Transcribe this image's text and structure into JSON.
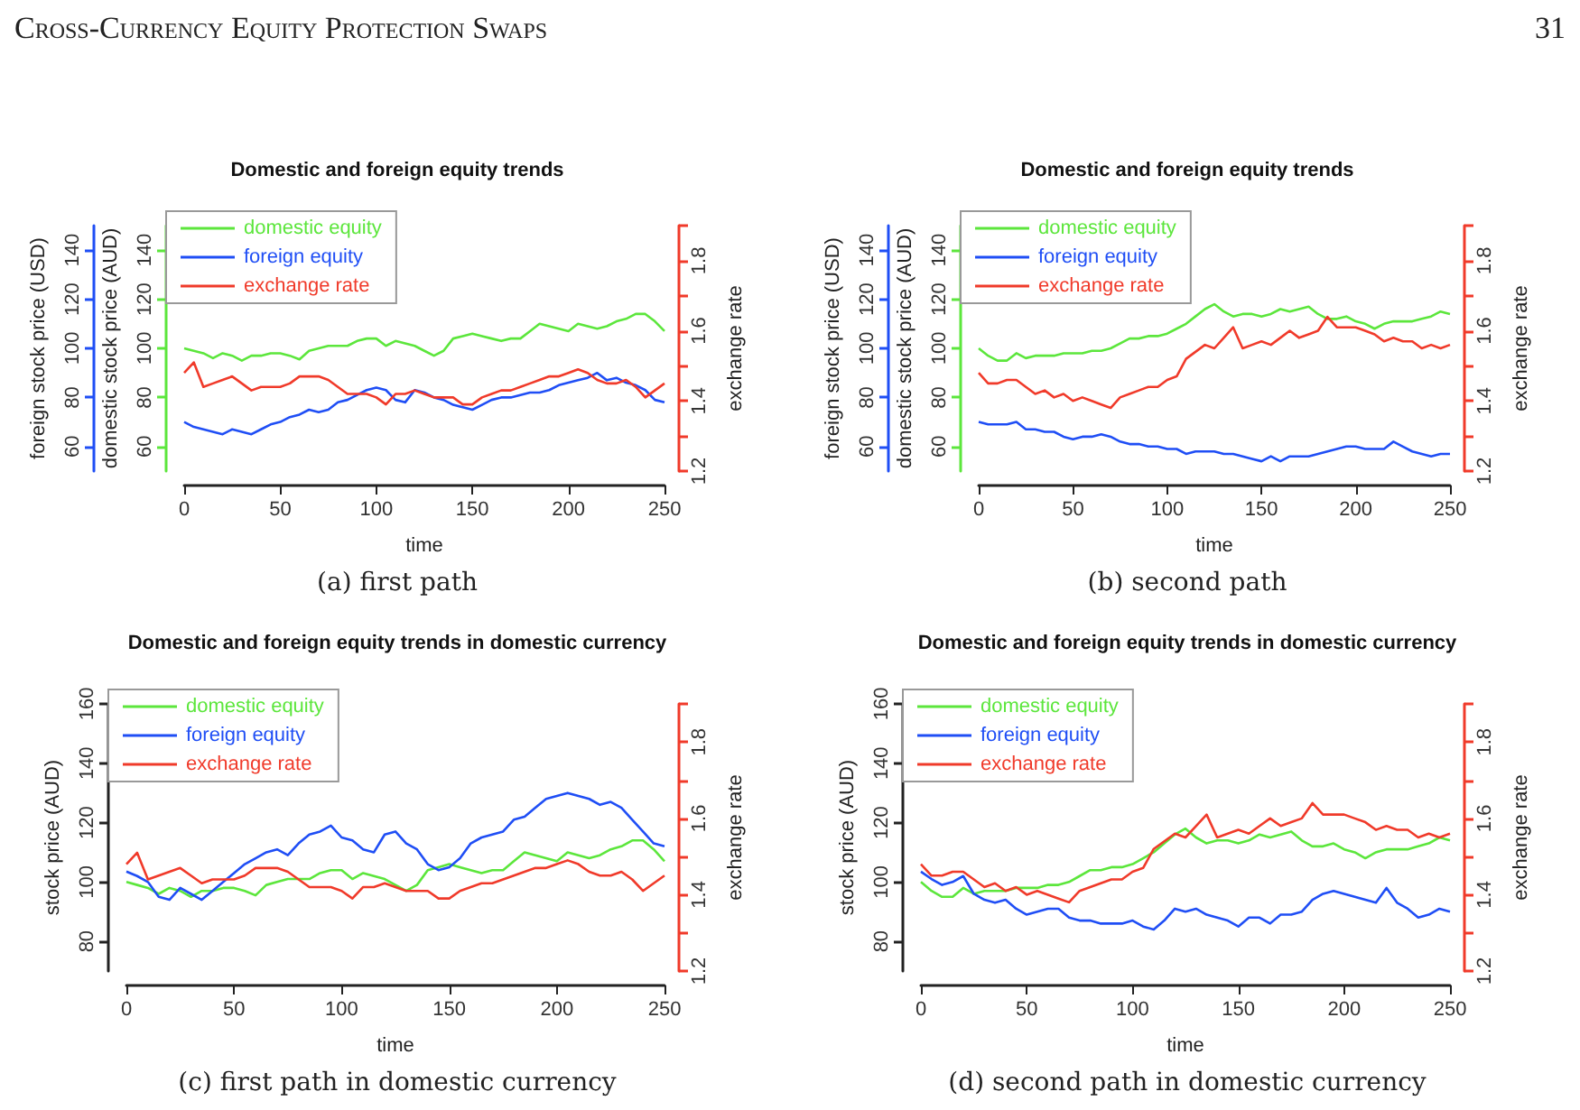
{
  "chart_data": [
    {
      "type": "other",
      "title": "Cross-Currency Equity Protection Swaps",
      "annotations": [
        "31"
      ]
    },
    {
      "type": "line",
      "title": "Domestic and foreign equity trends",
      "xlabel": "time",
      "ylabel": "domestic stock price (AUD)",
      "y2label": "exchange rate",
      "y3label": "foreign stock price (USD)",
      "legend": "top left",
      "annotations": [
        "(a) first path"
      ],
      "x": [
        0,
        5,
        10,
        15,
        20,
        25,
        30,
        35,
        40,
        45,
        50,
        55,
        60,
        65,
        70,
        75,
        80,
        85,
        90,
        95,
        100,
        105,
        110,
        115,
        120,
        125,
        130,
        135,
        140,
        145,
        150,
        155,
        160,
        165,
        170,
        175,
        180,
        185,
        190,
        195,
        200,
        205,
        210,
        215,
        220,
        225,
        230,
        235,
        240,
        245,
        250
      ],
      "xlim": [
        0,
        250
      ],
      "xticks": [
        0,
        50,
        100,
        150,
        200,
        250
      ],
      "ylim": [
        50,
        150
      ],
      "yticks": [
        60,
        80,
        100,
        120,
        140
      ],
      "y3lim": [
        50,
        150
      ],
      "y3ticks": [
        60,
        80,
        100,
        120,
        140
      ],
      "y2lim": [
        1.2,
        1.9
      ],
      "y2ticks": [
        1.2,
        {
          "value": 1.3,
          "label": null
        },
        1.4,
        {
          "value": 1.5,
          "label": null
        },
        1.6,
        {
          "value": 1.7,
          "label": null
        },
        1.8,
        {
          "value": 1.9,
          "label": null
        }
      ],
      "series": [
        {
          "name": "domestic equity",
          "color": "#5ce63c",
          "values": [
            100,
            99,
            98,
            96,
            98,
            97,
            95,
            97,
            97,
            98,
            98,
            97,
            95.5,
            99,
            100,
            101,
            101,
            101,
            103,
            104,
            104,
            101,
            103,
            102,
            101,
            99,
            97,
            99,
            104,
            105,
            106,
            105,
            104,
            103,
            104,
            104,
            107,
            110,
            109,
            108,
            107,
            110,
            109,
            108,
            109,
            111,
            112,
            114,
            114,
            111,
            107
          ]
        },
        {
          "name": "foreign equity",
          "color": "#1f4ef5",
          "axis": "y3",
          "values": [
            70,
            68,
            67,
            66,
            65,
            67,
            66,
            65,
            67,
            69,
            70,
            72,
            73,
            75,
            74,
            75,
            78,
            79,
            81,
            83,
            84,
            83,
            79,
            78,
            83,
            82,
            80,
            79,
            77,
            76,
            75,
            77,
            79,
            80,
            80,
            81,
            82,
            82,
            83,
            85,
            86,
            87,
            88,
            90,
            87,
            88,
            86,
            85,
            83,
            79,
            78
          ]
        },
        {
          "name": "exchange rate",
          "color": "#f03a2a",
          "axis": "y2",
          "values": [
            1.48,
            1.51,
            1.44,
            1.45,
            1.46,
            1.47,
            1.45,
            1.43,
            1.44,
            1.44,
            1.44,
            1.45,
            1.47,
            1.47,
            1.47,
            1.46,
            1.44,
            1.42,
            1.42,
            1.42,
            1.41,
            1.39,
            1.42,
            1.42,
            1.43,
            1.42,
            1.41,
            1.41,
            1.41,
            1.39,
            1.39,
            1.41,
            1.42,
            1.43,
            1.43,
            1.44,
            1.45,
            1.46,
            1.47,
            1.47,
            1.48,
            1.49,
            1.48,
            1.46,
            1.45,
            1.45,
            1.46,
            1.44,
            1.41,
            1.43,
            1.45
          ]
        }
      ]
    },
    {
      "type": "line",
      "title": "Domestic and foreign equity trends",
      "xlabel": "time",
      "ylabel": "domestic stock price (AUD)",
      "y2label": "exchange rate",
      "y3label": "foreign stock price (USD)",
      "legend": "top left",
      "annotations": [
        "(b) second path"
      ],
      "x": [
        0,
        5,
        10,
        15,
        20,
        25,
        30,
        35,
        40,
        45,
        50,
        55,
        60,
        65,
        70,
        75,
        80,
        85,
        90,
        95,
        100,
        105,
        110,
        115,
        120,
        125,
        130,
        135,
        140,
        145,
        150,
        155,
        160,
        165,
        170,
        175,
        180,
        185,
        190,
        195,
        200,
        205,
        210,
        215,
        220,
        225,
        230,
        235,
        240,
        245,
        250
      ],
      "xlim": [
        0,
        250
      ],
      "xticks": [
        0,
        50,
        100,
        150,
        200,
        250
      ],
      "ylim": [
        50,
        150
      ],
      "yticks": [
        60,
        80,
        100,
        120,
        140
      ],
      "y3lim": [
        50,
        150
      ],
      "y3ticks": [
        60,
        80,
        100,
        120,
        140
      ],
      "y2lim": [
        1.2,
        1.9
      ],
      "y2ticks": [
        1.2,
        {
          "value": 1.3,
          "label": null
        },
        1.4,
        {
          "value": 1.5,
          "label": null
        },
        1.6,
        {
          "value": 1.7,
          "label": null
        },
        1.8,
        {
          "value": 1.9,
          "label": null
        }
      ],
      "series": [
        {
          "name": "domestic equity",
          "color": "#5ce63c",
          "values": [
            100,
            97,
            95,
            95,
            98,
            96,
            97,
            97,
            97,
            98,
            98,
            98,
            99,
            99,
            100,
            102,
            104,
            104,
            105,
            105,
            106,
            108,
            110,
            113,
            116,
            118,
            115,
            113,
            114,
            114,
            113,
            114,
            116,
            115,
            116,
            117,
            114,
            112,
            112,
            113,
            111,
            110,
            108,
            110,
            111,
            111,
            111,
            112,
            113,
            115,
            114
          ]
        },
        {
          "name": "foreign equity",
          "color": "#1f4ef5",
          "axis": "y3",
          "values": [
            70,
            69,
            69,
            69,
            70,
            67,
            67,
            66,
            66,
            64,
            63,
            64,
            64,
            65,
            64,
            62,
            61,
            61,
            60,
            60,
            59,
            59,
            57,
            58,
            58,
            58,
            57,
            57,
            56,
            55,
            54,
            56,
            54,
            56,
            56,
            56,
            57,
            58,
            59,
            60,
            60,
            59,
            59,
            59,
            62,
            60,
            58,
            57,
            56,
            57,
            57
          ]
        },
        {
          "name": "exchange rate",
          "color": "#f03a2a",
          "axis": "y2",
          "values": [
            1.48,
            1.45,
            1.45,
            1.46,
            1.46,
            1.44,
            1.42,
            1.43,
            1.41,
            1.42,
            1.4,
            1.41,
            1.4,
            1.39,
            1.38,
            1.41,
            1.42,
            1.43,
            1.44,
            1.44,
            1.46,
            1.47,
            1.52,
            1.54,
            1.56,
            1.55,
            1.58,
            1.61,
            1.55,
            1.56,
            1.57,
            1.56,
            1.58,
            1.6,
            1.58,
            1.59,
            1.6,
            1.64,
            1.61,
            1.61,
            1.61,
            1.6,
            1.59,
            1.57,
            1.58,
            1.57,
            1.57,
            1.55,
            1.56,
            1.55,
            1.56
          ]
        }
      ]
    },
    {
      "type": "line",
      "title": "Domestic and foreign equity trends in domestic currency",
      "xlabel": "time",
      "ylabel": "stock price (AUD)",
      "y2label": "exchange rate",
      "legend": "top left",
      "annotations": [
        "(c) first path in domestic currency"
      ],
      "x": [
        0,
        5,
        10,
        15,
        20,
        25,
        30,
        35,
        40,
        45,
        50,
        55,
        60,
        65,
        70,
        75,
        80,
        85,
        90,
        95,
        100,
        105,
        110,
        115,
        120,
        125,
        130,
        135,
        140,
        145,
        150,
        155,
        160,
        165,
        170,
        175,
        180,
        185,
        190,
        195,
        200,
        205,
        210,
        215,
        220,
        225,
        230,
        235,
        240,
        245,
        250
      ],
      "xlim": [
        0,
        250
      ],
      "xticks": [
        0,
        50,
        100,
        150,
        200,
        250
      ],
      "ylim": [
        70,
        160
      ],
      "yticks": [
        80,
        100,
        120,
        140,
        160
      ],
      "y2lim": [
        1.2,
        1.9
      ],
      "y2ticks": [
        1.2,
        {
          "value": 1.3,
          "label": null
        },
        1.4,
        {
          "value": 1.5,
          "label": null
        },
        1.6,
        {
          "value": 1.7,
          "label": null
        },
        1.8,
        {
          "value": 1.9,
          "label": null
        }
      ],
      "series": [
        {
          "name": "domestic equity",
          "color": "#5ce63c",
          "values": [
            100,
            99,
            98,
            96,
            98,
            97,
            95,
            97,
            97,
            98,
            98,
            97,
            95.5,
            99,
            100,
            101,
            101,
            101,
            103,
            104,
            104,
            101,
            103,
            102,
            101,
            99,
            97,
            99,
            104,
            105,
            106,
            105,
            104,
            103,
            104,
            104,
            107,
            110,
            109,
            108,
            107,
            110,
            109,
            108,
            109,
            111,
            112,
            114,
            114,
            111,
            107
          ]
        },
        {
          "name": "foreign equity",
          "color": "#1f4ef5",
          "values": [
            103.5,
            102,
            100,
            95,
            94,
            98,
            96,
            94,
            97,
            100,
            103,
            106,
            108,
            110,
            111,
            109,
            113,
            116,
            117,
            119,
            115,
            114,
            111,
            110,
            116,
            117,
            113,
            111,
            106,
            104,
            105,
            108,
            113,
            115,
            116,
            117,
            121,
            122,
            125,
            128,
            129,
            130,
            129,
            128,
            126,
            127,
            125,
            121,
            117,
            113,
            112
          ]
        },
        {
          "name": "exchange rate",
          "color": "#f03a2a",
          "axis": "y2",
          "values": [
            1.48,
            1.51,
            1.44,
            1.45,
            1.46,
            1.47,
            1.45,
            1.43,
            1.44,
            1.44,
            1.44,
            1.45,
            1.47,
            1.47,
            1.47,
            1.46,
            1.44,
            1.42,
            1.42,
            1.42,
            1.41,
            1.39,
            1.42,
            1.42,
            1.43,
            1.42,
            1.41,
            1.41,
            1.41,
            1.39,
            1.39,
            1.41,
            1.42,
            1.43,
            1.43,
            1.44,
            1.45,
            1.46,
            1.47,
            1.47,
            1.48,
            1.49,
            1.48,
            1.46,
            1.45,
            1.45,
            1.46,
            1.44,
            1.41,
            1.43,
            1.45
          ]
        }
      ]
    },
    {
      "type": "line",
      "title": "Domestic and foreign equity trends in domestic currency",
      "xlabel": "time",
      "ylabel": "stock price (AUD)",
      "y2label": "exchange rate",
      "legend": "top left",
      "annotations": [
        "(d) second path in domestic currency"
      ],
      "x": [
        0,
        5,
        10,
        15,
        20,
        25,
        30,
        35,
        40,
        45,
        50,
        55,
        60,
        65,
        70,
        75,
        80,
        85,
        90,
        95,
        100,
        105,
        110,
        115,
        120,
        125,
        130,
        135,
        140,
        145,
        150,
        155,
        160,
        165,
        170,
        175,
        180,
        185,
        190,
        195,
        200,
        205,
        210,
        215,
        220,
        225,
        230,
        235,
        240,
        245,
        250
      ],
      "xlim": [
        0,
        250
      ],
      "xticks": [
        0,
        50,
        100,
        150,
        200,
        250
      ],
      "ylim": [
        70,
        160
      ],
      "yticks": [
        80,
        100,
        120,
        140,
        160
      ],
      "y2lim": [
        1.2,
        1.9
      ],
      "y2ticks": [
        1.2,
        {
          "value": 1.3,
          "label": null
        },
        1.4,
        {
          "value": 1.5,
          "label": null
        },
        1.6,
        {
          "value": 1.7,
          "label": null
        },
        1.8,
        {
          "value": 1.9,
          "label": null
        }
      ],
      "series": [
        {
          "name": "domestic equity",
          "color": "#5ce63c",
          "values": [
            100,
            97,
            95,
            95,
            98,
            96,
            97,
            97,
            97,
            98,
            98,
            98,
            99,
            99,
            100,
            102,
            104,
            104,
            105,
            105,
            106,
            108,
            110,
            113,
            116,
            118,
            115,
            113,
            114,
            114,
            113,
            114,
            116,
            115,
            116,
            117,
            114,
            112,
            112,
            113,
            111,
            110,
            108,
            110,
            111,
            111,
            111,
            112,
            113,
            115,
            114
          ]
        },
        {
          "name": "foreign equity",
          "color": "#1f4ef5",
          "values": [
            103.5,
            101,
            99,
            100,
            102,
            96,
            94,
            93,
            94,
            91,
            89,
            90,
            91,
            91,
            88,
            87,
            87,
            86,
            86,
            86,
            87,
            85,
            84,
            87,
            91,
            90,
            91,
            89,
            88,
            87,
            85,
            88,
            88,
            86,
            89,
            89,
            90,
            94,
            96,
            97,
            96,
            95,
            94,
            93,
            98,
            93,
            91,
            88,
            89,
            91,
            90
          ]
        },
        {
          "name": "exchange rate",
          "color": "#f03a2a",
          "axis": "y2",
          "values": [
            1.48,
            1.45,
            1.45,
            1.46,
            1.46,
            1.44,
            1.42,
            1.43,
            1.41,
            1.42,
            1.4,
            1.41,
            1.4,
            1.39,
            1.38,
            1.41,
            1.42,
            1.43,
            1.44,
            1.44,
            1.46,
            1.47,
            1.52,
            1.54,
            1.56,
            1.55,
            1.58,
            1.61,
            1.55,
            1.56,
            1.57,
            1.56,
            1.58,
            1.6,
            1.58,
            1.59,
            1.6,
            1.64,
            1.61,
            1.61,
            1.61,
            1.6,
            1.59,
            1.57,
            1.58,
            1.57,
            1.57,
            1.55,
            1.56,
            1.55,
            1.56
          ]
        }
      ]
    }
  ]
}
